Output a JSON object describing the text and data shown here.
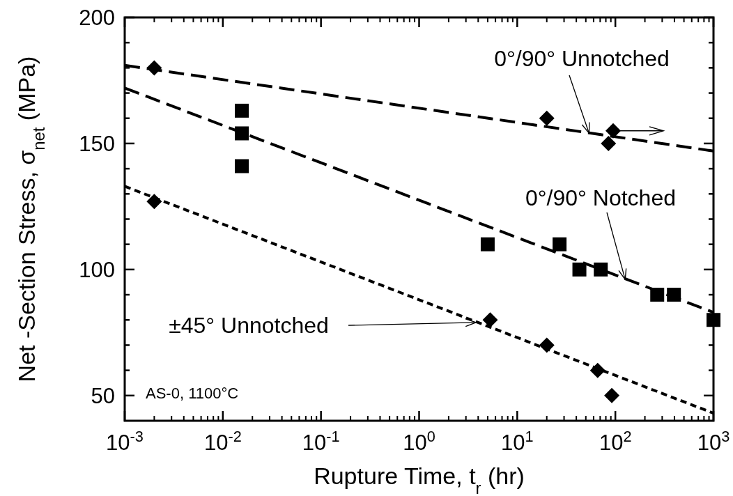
{
  "chart_data": {
    "type": "scatter",
    "xlabel": "Rupture Time,  t$_{r}$  (hr)",
    "ylabel": "Net -Section Stress,  σ$_{net}$  (MPa)",
    "log": "x",
    "xlim": [
      0.001,
      1000
    ],
    "ylim": [
      40,
      200
    ],
    "xticks": [
      {
        "value": 0.001,
        "label": "10$^{-3}$"
      },
      {
        "value": 0.01,
        "label": "10$^{-2}$"
      },
      {
        "value": 0.1,
        "label": "10$^{-1}$"
      },
      {
        "value": 1,
        "label": "10$^{0}$"
      },
      {
        "value": 10,
        "label": "10$^{1}$"
      },
      {
        "value": 100,
        "label": "10$^{2}$"
      },
      {
        "value": 1000,
        "label": "10$^{3}$"
      }
    ],
    "yticks": [
      50,
      {
        "value": 60,
        "label": null
      },
      {
        "value": 70,
        "label": null
      },
      {
        "value": 80,
        "label": null
      },
      {
        "value": 90,
        "label": null
      },
      100,
      {
        "value": 110,
        "label": null
      },
      {
        "value": 120,
        "label": null
      },
      {
        "value": 130,
        "label": null
      },
      {
        "value": 140,
        "label": null
      },
      150,
      {
        "value": 160,
        "label": null
      },
      {
        "value": 170,
        "label": null
      },
      {
        "value": 180,
        "label": null
      },
      {
        "value": 190,
        "label": null
      },
      200
    ],
    "series": [
      {
        "marker": "diamond",
        "color": "#000000",
        "x": [
          0.002,
          20,
          95,
          85
        ],
        "values": [
          180,
          160,
          155,
          150
        ]
      },
      {
        "marker": "square",
        "color": "#000000",
        "x": [
          0.0156,
          0.0156,
          0.0156,
          5,
          27,
          43,
          71,
          267,
          395,
          1000
        ],
        "values": [
          163,
          154,
          141,
          110,
          110,
          100,
          100,
          90,
          90,
          80
        ]
      },
      {
        "marker": "diamond",
        "color": "#000000",
        "x": [
          0.002,
          5.3,
          20,
          66,
          92
        ],
        "values": [
          127,
          80,
          70,
          60,
          50
        ]
      },
      {
        "type": "line",
        "line_style": "dashed",
        "color": "#000000",
        "x": [
          0.001,
          1000
        ],
        "values": [
          181,
          147
        ]
      },
      {
        "type": "line",
        "line_style": "dashed",
        "color": "#000000",
        "x": [
          0.001,
          1000
        ],
        "values": [
          172,
          83
        ]
      },
      {
        "type": "line",
        "line_style": "dotted",
        "color": "#000000",
        "x": [
          0.001,
          1000
        ],
        "values": [
          133,
          43
        ]
      }
    ],
    "annotations": [
      {
        "text": "0°/90° Unnotched",
        "x": 54,
        "y": 154
      },
      {
        "text": "0°/90° Notched",
        "x": 126,
        "y": 96
      },
      {
        "text": "±45° Unnotched",
        "x": 3.8,
        "y": 79
      },
      "AS-0, 1100°C"
    ]
  }
}
